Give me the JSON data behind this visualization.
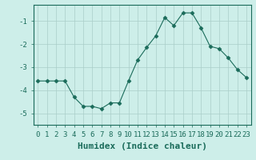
{
  "x": [
    0,
    1,
    2,
    3,
    4,
    5,
    6,
    7,
    8,
    9,
    10,
    11,
    12,
    13,
    14,
    15,
    16,
    17,
    18,
    19,
    20,
    21,
    22,
    23
  ],
  "y": [
    -3.6,
    -3.6,
    -3.6,
    -3.6,
    -4.3,
    -4.7,
    -4.7,
    -4.8,
    -4.55,
    -4.55,
    -3.6,
    -2.7,
    -2.15,
    -1.65,
    -0.85,
    -1.2,
    -0.65,
    -0.65,
    -1.3,
    -2.1,
    -2.2,
    -2.6,
    -3.1,
    -3.45
  ],
  "xlabel": "Humidex (Indice chaleur)",
  "ylim": [
    -5.5,
    -0.3
  ],
  "xlim": [
    -0.5,
    23.5
  ],
  "yticks": [
    -5,
    -4,
    -3,
    -2,
    -1
  ],
  "xticks": [
    0,
    1,
    2,
    3,
    4,
    5,
    6,
    7,
    8,
    9,
    10,
    11,
    12,
    13,
    14,
    15,
    16,
    17,
    18,
    19,
    20,
    21,
    22,
    23
  ],
  "line_color": "#1a6b5a",
  "marker": "D",
  "markersize": 2.5,
  "bg_color": "#cdeee9",
  "grid_color": "#aacdc8",
  "tick_label_fontsize": 6.5,
  "xlabel_fontsize": 8.0
}
